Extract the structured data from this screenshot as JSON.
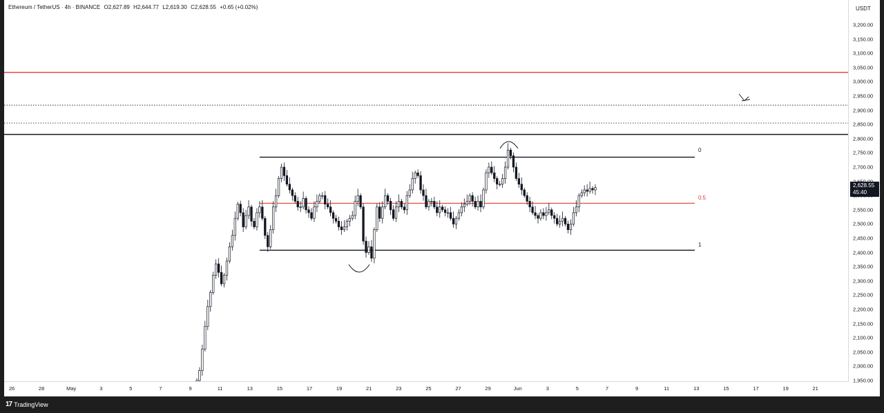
{
  "legend": {
    "symbol": "Ethereum / TetherUS · 4h · BINANCE",
    "open_label": "O",
    "open": "2,627.89",
    "high_label": "H",
    "high": "2,644.77",
    "low_label": "L",
    "low": "2,619.30",
    "close_label": "C",
    "close": "2,628.55",
    "change": "+0.65 (+0.02%)"
  },
  "price_axis": {
    "currency": "USDT",
    "ticks": [
      "3,200.00",
      "3,150.00",
      "3,100.00",
      "3,050.00",
      "3,000.00",
      "2,950.00",
      "2,900.00",
      "2,850.00",
      "2,800.00",
      "2,750.00",
      "2,700.00",
      "2,650.00",
      "2,600.00",
      "2,550.00",
      "2,500.00",
      "2,450.00",
      "2,400.00",
      "2,350.00",
      "2,300.00",
      "2,250.00",
      "2,200.00",
      "2,150.00",
      "2,100.00",
      "2,050.00",
      "2,000.00",
      "1,950.00"
    ],
    "current_price": "2,628.55",
    "countdown": "45:40"
  },
  "time_axis": {
    "ticks": [
      "26",
      "28",
      "May",
      "3",
      "5",
      "7",
      "9",
      "11",
      "13",
      "15",
      "17",
      "19",
      "21",
      "23",
      "25",
      "27",
      "29",
      "Jun",
      "3",
      "5",
      "7",
      "9",
      "11",
      "13",
      "15",
      "17",
      "19",
      "21"
    ]
  },
  "fib_labels": {
    "level_0": "0",
    "level_05": "0.5",
    "level_1": "1"
  },
  "colors": {
    "candle": "#131722",
    "fib_mid": "#e53935",
    "resistance": "#e53935",
    "background": "#ffffff"
  },
  "chart_data": {
    "type": "candlestick",
    "interval": "4h",
    "exchange": "BINANCE",
    "pair": "ETHUSDT",
    "ylim": [
      1950,
      3200
    ],
    "horizontal_levels": [
      {
        "price": 3033,
        "style": "solid",
        "color": "#e53935"
      },
      {
        "price": 2918,
        "style": "dotted",
        "color": "#131722"
      },
      {
        "price": 2855,
        "style": "dotted",
        "color": "#131722"
      },
      {
        "price": 2815,
        "style": "solid",
        "color": "#131722"
      }
    ],
    "fib_retracement": {
      "level_0": 2735,
      "level_05": 2573,
      "level_1": 2408
    },
    "closes": [
      1950,
      1985,
      2060,
      2140,
      2210,
      2260,
      2320,
      2360,
      2330,
      2290,
      2320,
      2370,
      2420,
      2460,
      2520,
      2570,
      2540,
      2490,
      2530,
      2560,
      2510,
      2490,
      2540,
      2560,
      2520,
      2460,
      2420,
      2480,
      2560,
      2600,
      2660,
      2700,
      2670,
      2640,
      2620,
      2600,
      2580,
      2560,
      2560,
      2590,
      2550,
      2540,
      2520,
      2560,
      2580,
      2600,
      2600,
      2570,
      2560,
      2540,
      2520,
      2510,
      2490,
      2480,
      2490,
      2510,
      2520,
      2530,
      2580,
      2600,
      2560,
      2440,
      2400,
      2420,
      2380,
      2480,
      2560,
      2520,
      2560,
      2600,
      2580,
      2550,
      2520,
      2560,
      2580,
      2560,
      2550,
      2600,
      2620,
      2660,
      2680,
      2670,
      2620,
      2600,
      2560,
      2580,
      2580,
      2560,
      2540,
      2560,
      2550,
      2540,
      2540,
      2520,
      2500,
      2520,
      2540,
      2560,
      2570,
      2580,
      2600,
      2580,
      2560,
      2580,
      2560,
      2620,
      2680,
      2700,
      2680,
      2660,
      2640,
      2640,
      2660,
      2700,
      2760,
      2740,
      2700,
      2660,
      2640,
      2620,
      2600,
      2580,
      2560,
      2540,
      2530,
      2520,
      2540,
      2530,
      2540,
      2550,
      2530,
      2520,
      2500,
      2510,
      2520,
      2500,
      2480,
      2500,
      2540,
      2560,
      2600,
      2610,
      2620,
      2615,
      2625,
      2620,
      2628
    ]
  }
}
